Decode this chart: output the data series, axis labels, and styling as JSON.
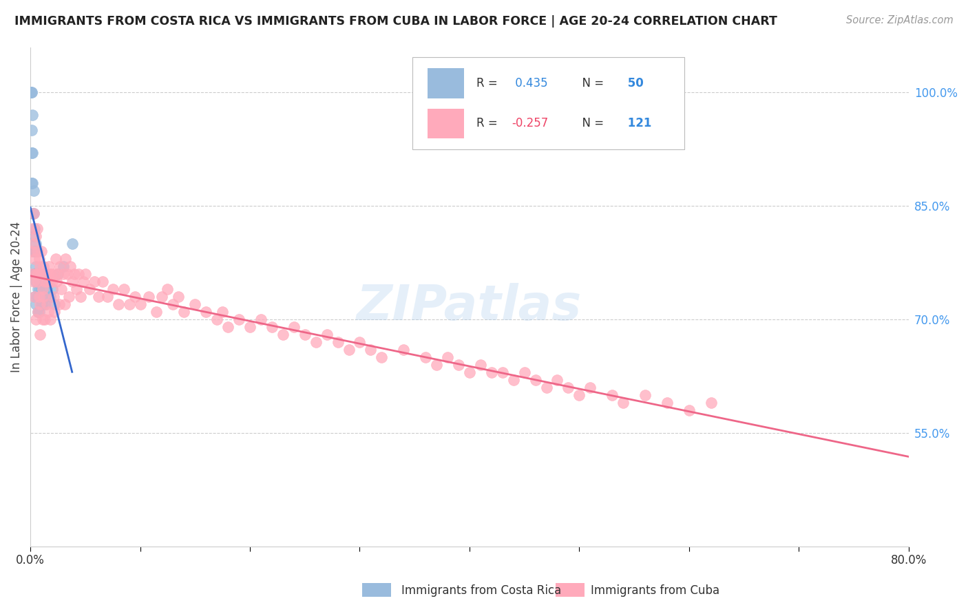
{
  "title": "IMMIGRANTS FROM COSTA RICA VS IMMIGRANTS FROM CUBA IN LABOR FORCE | AGE 20-24 CORRELATION CHART",
  "source": "Source: ZipAtlas.com",
  "ylabel": "In Labor Force | Age 20-24",
  "watermark": "ZIPatlas",
  "cr_R": 0.435,
  "cr_N": 50,
  "cuba_R": -0.257,
  "cuba_N": 121,
  "cr_color": "#99bbdd",
  "cuba_color": "#ffaabb",
  "cr_line_color": "#3366cc",
  "cuba_line_color": "#ee6688",
  "xlim": [
    0.0,
    0.8
  ],
  "ylim": [
    0.4,
    1.06
  ],
  "yticks": [
    0.55,
    0.7,
    0.85,
    1.0
  ],
  "ytick_labels": [
    "55.0%",
    "70.0%",
    "85.0%",
    "100.0%"
  ],
  "background_color": "#ffffff",
  "grid_color": "#cccccc",
  "title_color": "#222222",
  "source_color": "#999999",
  "ytick_color": "#4499ee",
  "xtick_color": "#333333",
  "legend_border_color": "#cccccc",
  "cr_points_x": [
    0.0,
    0.0,
    0.0,
    0.001,
    0.001,
    0.001,
    0.001,
    0.001,
    0.002,
    0.002,
    0.002,
    0.002,
    0.003,
    0.003,
    0.003,
    0.003,
    0.003,
    0.004,
    0.004,
    0.004,
    0.004,
    0.005,
    0.005,
    0.005,
    0.005,
    0.006,
    0.006,
    0.006,
    0.007,
    0.007,
    0.007,
    0.008,
    0.008,
    0.008,
    0.009,
    0.009,
    0.01,
    0.01,
    0.011,
    0.012,
    0.013,
    0.014,
    0.015,
    0.016,
    0.018,
    0.02,
    0.022,
    0.025,
    0.03,
    0.038
  ],
  "cr_points_y": [
    1.0,
    1.0,
    1.0,
    1.0,
    1.0,
    0.95,
    0.92,
    0.88,
    0.97,
    0.92,
    0.88,
    0.84,
    0.87,
    0.84,
    0.81,
    0.79,
    0.76,
    0.82,
    0.79,
    0.76,
    0.73,
    0.8,
    0.77,
    0.75,
    0.72,
    0.79,
    0.76,
    0.73,
    0.76,
    0.74,
    0.71,
    0.76,
    0.74,
    0.71,
    0.75,
    0.73,
    0.74,
    0.72,
    0.72,
    0.73,
    0.72,
    0.73,
    0.74,
    0.75,
    0.73,
    0.74,
    0.72,
    0.76,
    0.77,
    0.8
  ],
  "cuba_points_x": [
    0.001,
    0.002,
    0.002,
    0.003,
    0.003,
    0.003,
    0.004,
    0.004,
    0.005,
    0.005,
    0.005,
    0.006,
    0.006,
    0.006,
    0.007,
    0.007,
    0.008,
    0.008,
    0.009,
    0.009,
    0.009,
    0.01,
    0.01,
    0.011,
    0.011,
    0.012,
    0.012,
    0.013,
    0.013,
    0.014,
    0.015,
    0.015,
    0.016,
    0.016,
    0.017,
    0.018,
    0.018,
    0.019,
    0.02,
    0.021,
    0.022,
    0.022,
    0.023,
    0.024,
    0.025,
    0.026,
    0.027,
    0.028,
    0.03,
    0.031,
    0.032,
    0.034,
    0.035,
    0.036,
    0.038,
    0.04,
    0.042,
    0.044,
    0.046,
    0.048,
    0.05,
    0.054,
    0.058,
    0.062,
    0.066,
    0.07,
    0.075,
    0.08,
    0.085,
    0.09,
    0.095,
    0.1,
    0.108,
    0.115,
    0.12,
    0.125,
    0.13,
    0.135,
    0.14,
    0.15,
    0.16,
    0.17,
    0.175,
    0.18,
    0.19,
    0.2,
    0.21,
    0.22,
    0.23,
    0.24,
    0.25,
    0.26,
    0.27,
    0.28,
    0.29,
    0.3,
    0.31,
    0.32,
    0.34,
    0.36,
    0.37,
    0.38,
    0.39,
    0.4,
    0.41,
    0.42,
    0.43,
    0.44,
    0.45,
    0.46,
    0.47,
    0.48,
    0.49,
    0.5,
    0.51,
    0.53,
    0.54,
    0.56,
    0.58,
    0.6,
    0.62
  ],
  "cuba_points_y": [
    0.79,
    0.76,
    0.82,
    0.8,
    0.75,
    0.84,
    0.78,
    0.73,
    0.81,
    0.76,
    0.7,
    0.79,
    0.75,
    0.82,
    0.76,
    0.71,
    0.78,
    0.73,
    0.77,
    0.72,
    0.68,
    0.76,
    0.79,
    0.74,
    0.7,
    0.77,
    0.73,
    0.75,
    0.7,
    0.76,
    0.75,
    0.72,
    0.76,
    0.71,
    0.77,
    0.75,
    0.7,
    0.76,
    0.75,
    0.73,
    0.76,
    0.71,
    0.78,
    0.75,
    0.76,
    0.72,
    0.77,
    0.74,
    0.76,
    0.72,
    0.78,
    0.76,
    0.73,
    0.77,
    0.75,
    0.76,
    0.74,
    0.76,
    0.73,
    0.75,
    0.76,
    0.74,
    0.75,
    0.73,
    0.75,
    0.73,
    0.74,
    0.72,
    0.74,
    0.72,
    0.73,
    0.72,
    0.73,
    0.71,
    0.73,
    0.74,
    0.72,
    0.73,
    0.71,
    0.72,
    0.71,
    0.7,
    0.71,
    0.69,
    0.7,
    0.69,
    0.7,
    0.69,
    0.68,
    0.69,
    0.68,
    0.67,
    0.68,
    0.67,
    0.66,
    0.67,
    0.66,
    0.65,
    0.66,
    0.65,
    0.64,
    0.65,
    0.64,
    0.63,
    0.64,
    0.63,
    0.63,
    0.62,
    0.63,
    0.62,
    0.61,
    0.62,
    0.61,
    0.6,
    0.61,
    0.6,
    0.59,
    0.6,
    0.59,
    0.58,
    0.59
  ]
}
